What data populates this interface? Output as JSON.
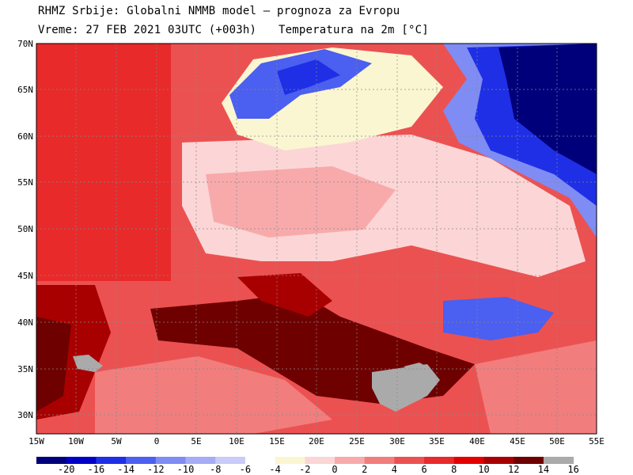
{
  "header": {
    "line1": "RHMZ Srbije: Globalni NMMB model — prognoza za Evropu",
    "line2": "Vreme: 27 FEB 2021 03UTC (+003h)",
    "variable": "Temperatura na 2m [°C]"
  },
  "map": {
    "lat_labels": [
      "70N",
      "65N",
      "60N",
      "55N",
      "50N",
      "45N",
      "40N",
      "35N",
      "30N"
    ],
    "lon_labels": [
      "15W",
      "10W",
      "5W",
      "0",
      "5E",
      "10E",
      "15E",
      "20E",
      "25E",
      "30E",
      "35E",
      "40E",
      "45E",
      "50E",
      "55E"
    ]
  },
  "colorbar": {
    "labels": [
      "-20",
      "-16",
      "-14",
      "-12",
      "-10",
      "-8",
      "-6",
      "-4",
      "-2",
      "0",
      "2",
      "4",
      "6",
      "8",
      "10",
      "12",
      "14",
      "16"
    ],
    "colors": [
      "#00007a",
      "#0000c8",
      "#1e2fe6",
      "#4b5ff0",
      "#7f8cf3",
      "#a6acf5",
      "#c9ccf8",
      "#ffffff",
      "#fbf6d2",
      "#fcd6d6",
      "#f8aaaa",
      "#f27d7d",
      "#ec5151",
      "#e82a2a",
      "#e40000",
      "#a80000",
      "#6e0000",
      "#aaaaaa"
    ]
  }
}
